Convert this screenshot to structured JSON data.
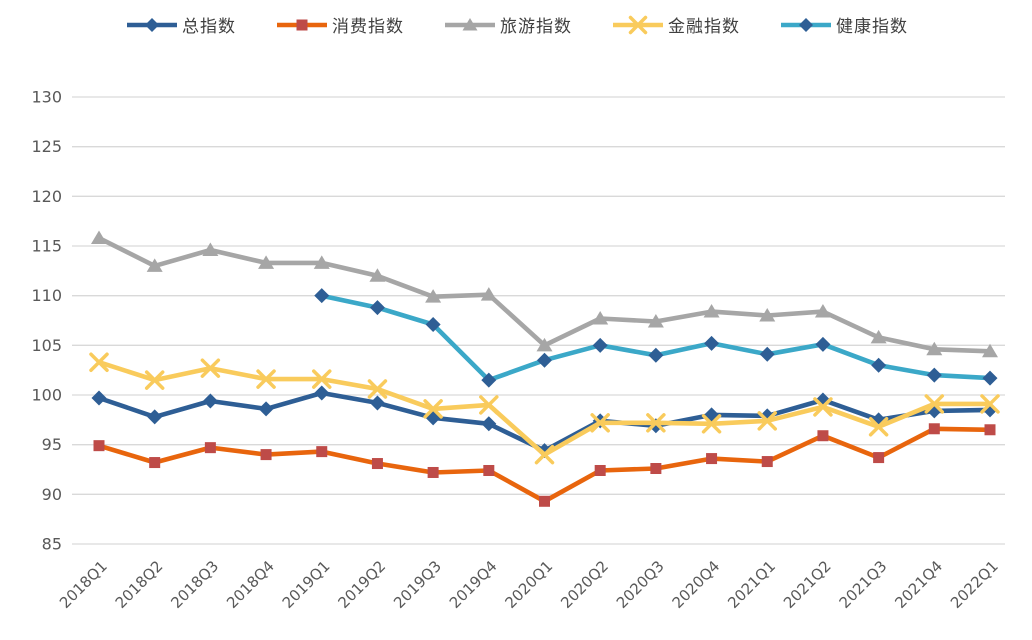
{
  "page": {
    "background": "#FFFFFF",
    "gridline_color": "#D9D9D9",
    "tick_label_color": "#595959",
    "legend_text_color": "#404040"
  },
  "chart_data": {
    "type": "line",
    "title": "",
    "xlabel": "",
    "ylabel": "",
    "grid": true,
    "legend_position": "top",
    "ylim": [
      85,
      130
    ],
    "ytick_step": 5,
    "y_tick_labels": [
      "85",
      "90",
      "95",
      "100",
      "105",
      "110",
      "115",
      "120",
      "125",
      "130"
    ],
    "categories": [
      "2018Q1",
      "2018Q2",
      "2018Q3",
      "2018Q4",
      "2019Q1",
      "2019Q2",
      "2019Q3",
      "2019Q4",
      "2020Q1",
      "2020Q2",
      "2020Q3",
      "2020Q4",
      "2021Q1",
      "2021Q2",
      "2021Q3",
      "2021Q4",
      "2022Q1"
    ],
    "series": [
      {
        "name": "总指数",
        "color": "#2E5E95",
        "marker": "diamond",
        "marker_color": "#2E5E95",
        "values": [
          99.7,
          97.8,
          99.4,
          98.6,
          100.2,
          99.2,
          97.7,
          97.1,
          94.4,
          97.4,
          96.9,
          98.0,
          97.9,
          99.5,
          97.5,
          98.4,
          98.5
        ]
      },
      {
        "name": "消费指数",
        "color": "#E8650D",
        "marker": "square",
        "marker_color": "#BE4B48",
        "values": [
          94.9,
          93.2,
          94.7,
          94.0,
          94.3,
          93.1,
          92.2,
          92.4,
          89.3,
          92.4,
          92.6,
          93.6,
          93.3,
          95.9,
          93.7,
          96.6,
          96.5
        ]
      },
      {
        "name": "旅游指数",
        "color": "#A6A6A6",
        "marker": "triangle",
        "marker_color": "#A6A6A6",
        "values": [
          115.8,
          113.0,
          114.6,
          113.3,
          113.3,
          112.0,
          109.9,
          110.1,
          105.0,
          107.7,
          107.4,
          108.4,
          108.0,
          108.4,
          105.8,
          104.6,
          104.4
        ]
      },
      {
        "name": "金融指数",
        "color": "#F9CB5C",
        "marker": "x",
        "marker_color": "#F9CB5C",
        "values": [
          103.3,
          101.5,
          102.7,
          101.6,
          101.6,
          100.6,
          98.6,
          99.0,
          94.0,
          97.2,
          97.2,
          97.1,
          97.4,
          98.8,
          96.8,
          99.1,
          99.1
        ]
      },
      {
        "name": "健康指数",
        "color": "#3BA8C8",
        "marker": "diamond",
        "marker_color": "#2E5E95",
        "values": [
          null,
          null,
          null,
          null,
          110.0,
          108.8,
          107.1,
          101.5,
          103.5,
          105.0,
          104.0,
          105.2,
          104.1,
          105.1,
          103.0,
          102.0,
          101.7
        ]
      }
    ]
  }
}
